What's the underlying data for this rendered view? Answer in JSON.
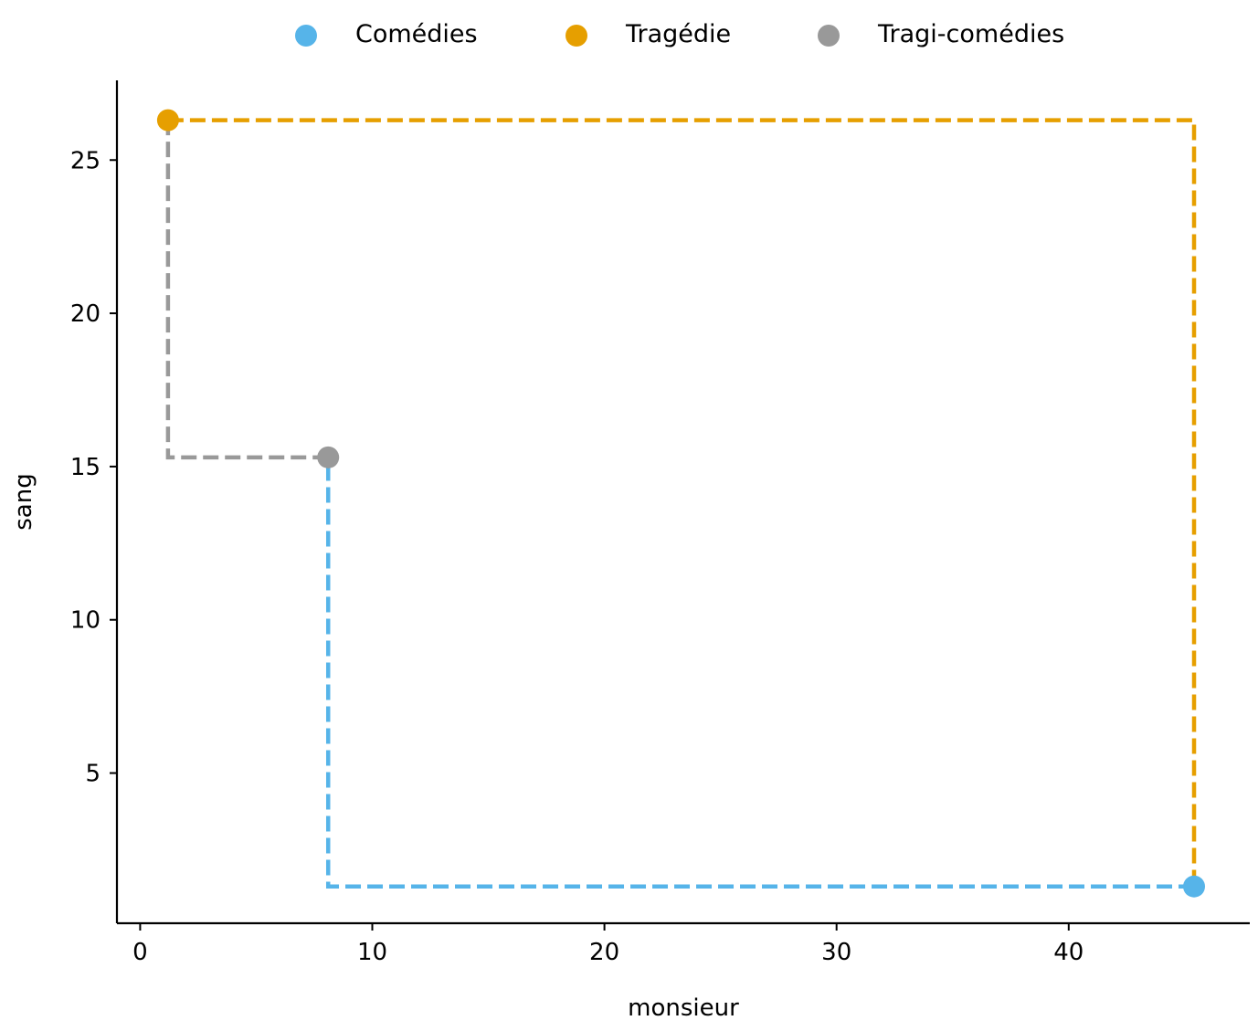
{
  "chart_data": {
    "type": "scatter",
    "xlabel": "monsieur",
    "ylabel": "sang",
    "xlim": [
      -1,
      47.8
    ],
    "ylim": [
      0.1,
      27.6
    ],
    "xticks": [
      0,
      10,
      20,
      30,
      40
    ],
    "yticks": [
      5,
      10,
      15,
      20,
      25
    ],
    "grid": false,
    "legend_position": "top-center",
    "series": [
      {
        "name": "Comédies",
        "color": "#56B4E9",
        "points": [
          {
            "x": 45.4,
            "y": 1.3
          }
        ]
      },
      {
        "name": "Tragédie",
        "color": "#E69F00",
        "points": [
          {
            "x": 1.2,
            "y": 26.3
          }
        ]
      },
      {
        "name": "Tragi-comédies",
        "color": "#999999",
        "points": [
          {
            "x": 8.1,
            "y": 15.3
          }
        ]
      }
    ],
    "connectors": [
      {
        "from_series": "Tragi-comédies",
        "to_series": "Tragédie",
        "color": "#999999",
        "style": "dashed-step"
      },
      {
        "from_series": "Tragédie",
        "to_series": "Comédies",
        "color": "#E69F00",
        "style": "dashed-step"
      },
      {
        "from_series": "Comédies",
        "to_series": "Tragi-comédies",
        "color": "#56B4E9",
        "style": "dashed-step"
      }
    ]
  }
}
